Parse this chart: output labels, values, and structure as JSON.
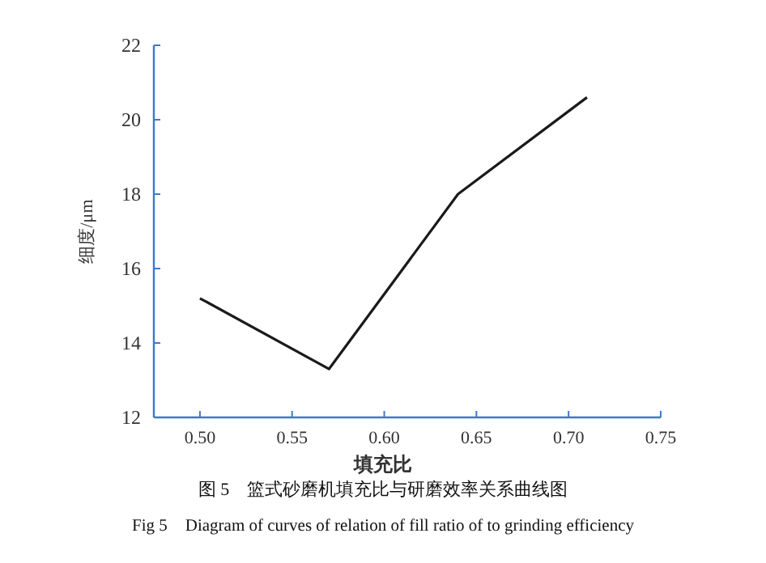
{
  "chart_data": {
    "type": "line",
    "xlabel": "填充比",
    "ylabel": "细度/μm",
    "x": [
      0.5,
      0.57,
      0.64,
      0.71
    ],
    "series": [
      {
        "color": "#1a1a1a",
        "values": [
          15.2,
          13.3,
          18.0,
          20.6
        ]
      }
    ],
    "xlim": [
      0.475,
      0.75
    ],
    "xticks": [
      {
        "value": 0.5,
        "label": "0.50"
      },
      {
        "value": 0.55,
        "label": "0.55"
      },
      {
        "value": 0.6,
        "label": "0.60"
      },
      {
        "value": 0.65,
        "label": "0.65"
      },
      {
        "value": 0.7,
        "label": "0.70"
      },
      {
        "value": 0.75,
        "label": "0.75"
      }
    ],
    "ylim": [
      12,
      22
    ],
    "yticks": [
      12,
      14,
      16,
      18,
      20,
      22
    ],
    "grid": false,
    "marker": "none",
    "line_style": "solid",
    "annotations": [
      "图 5　篮式砂磨机填充比与研磨效率关系曲线图",
      "Fig 5　Diagram of curves of relation of fill ratio of to grinding efficiency"
    ]
  }
}
